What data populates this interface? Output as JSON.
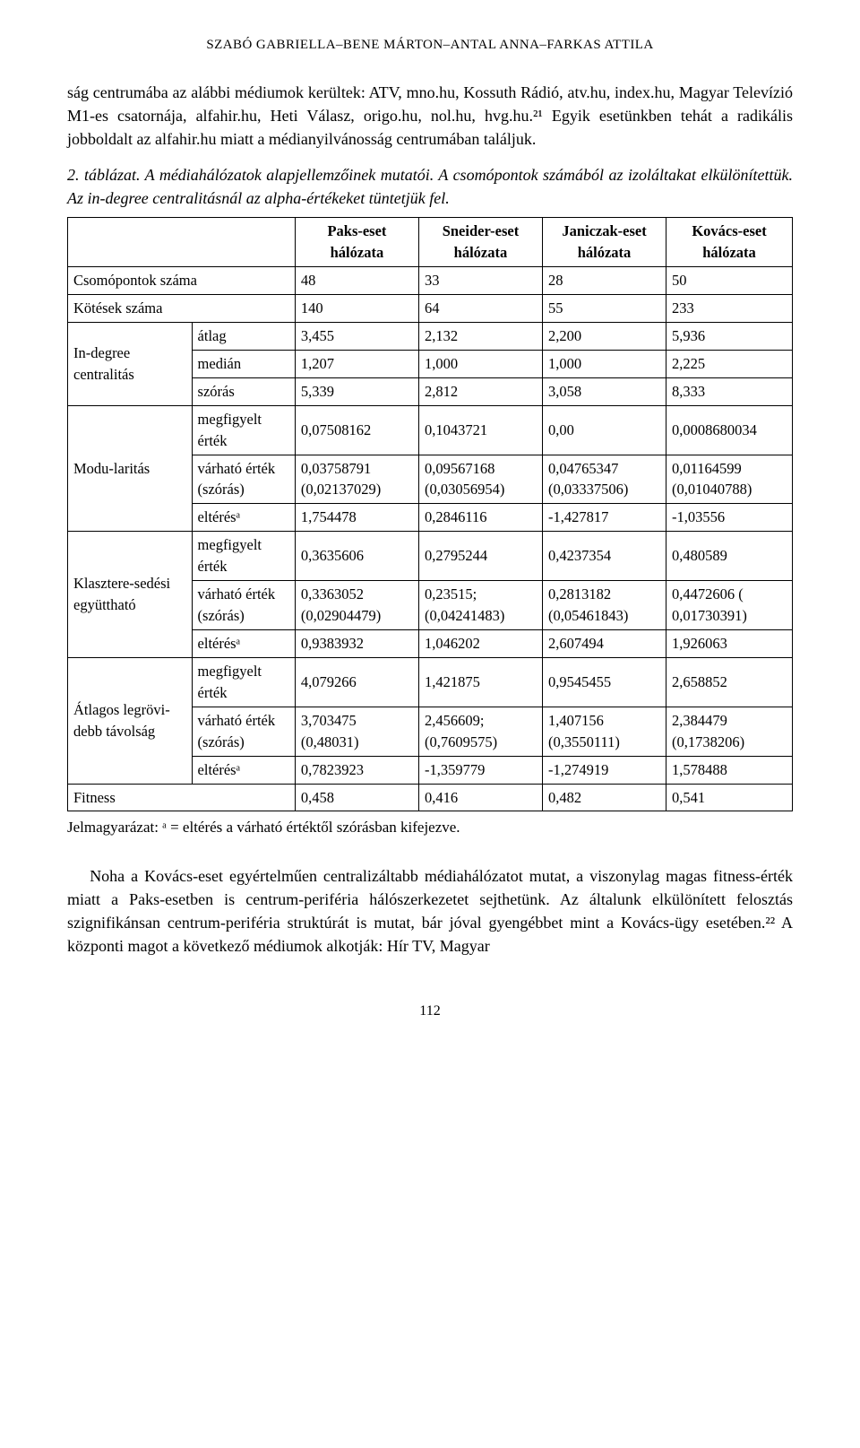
{
  "header": {
    "authors": "SZABÓ GABRIELLA–BENE MÁRTON–ANTAL ANNA–FARKAS ATTILA"
  },
  "para1": "ság centrumába az alábbi médiumok kerültek: ATV, mno.hu, Kossuth Rádió, atv.hu, index.hu, Magyar Televízió M1-es csatornája, alfahir.hu, Heti Válasz, origo.hu, nol.hu, hvg.hu.²¹ Egyik esetünkben tehát a radikális jobboldalt az alfahir.hu miatt a médianyilvánosság centrumában találjuk.",
  "caption": "2. táblázat. A médiahálózatok alapjellemzőinek mutatói. A csomópontok számából az izoláltakat elkülönítettük. Az in-degree centralitásnál az alpha-értékeket tüntetjük fel.",
  "table": {
    "columns": [
      "",
      "",
      "Paks-eset hálózata",
      "Sneider-eset hálózata",
      "Janiczak-eset hálózata",
      "Kovács-eset hálózata"
    ],
    "groups": [
      {
        "label": "Csomópontok száma",
        "rows": [
          [
            "",
            "48",
            "33",
            "28",
            "50"
          ]
        ],
        "span": false
      },
      {
        "label": "Kötések száma",
        "rows": [
          [
            "",
            "140",
            "64",
            "55",
            "233"
          ]
        ],
        "span": false
      },
      {
        "label": "In-degree centralitás",
        "rows": [
          [
            "átlag",
            "3,455",
            "2,132",
            "2,200",
            "5,936"
          ],
          [
            "medián",
            "1,207",
            "1,000",
            "1,000",
            "2,225"
          ],
          [
            "szórás",
            "5,339",
            "2,812",
            "3,058",
            "8,333"
          ]
        ],
        "span": true
      },
      {
        "label": "Modu-laritás",
        "rows": [
          [
            "megfigyelt érték",
            "0,07508162",
            "0,1043721",
            "0,00",
            "0,0008680034"
          ],
          [
            "várható érték (szórás)",
            "0,03758791 (0,02137029)",
            "0,09567168 (0,03056954)",
            "0,04765347 (0,03337506)",
            "0,01164599 (0,01040788)"
          ],
          [
            "eltérésᵃ",
            "1,754478",
            "0,2846116",
            "-1,427817",
            "-1,03556"
          ]
        ],
        "span": true
      },
      {
        "label": "Klasztere-sedési együttható",
        "rows": [
          [
            "megfigyelt érték",
            "0,3635606",
            "0,2795244",
            "0,4237354",
            "0,480589"
          ],
          [
            "várható érték (szórás)",
            "0,3363052 (0,02904479)",
            "0,23515; (0,04241483)",
            "0,2813182 (0,05461843)",
            "0,4472606 ( 0,01730391)"
          ],
          [
            "eltérésᵃ",
            "0,9383932",
            "1,046202",
            "2,607494",
            "1,926063"
          ]
        ],
        "span": true
      },
      {
        "label": "Átlagos legrövi-debb távolság",
        "rows": [
          [
            "megfigyelt érték",
            "4,079266",
            "1,421875",
            "0,9545455",
            "2,658852"
          ],
          [
            "várható érték (szórás)",
            "3,703475 (0,48031)",
            "2,456609; (0,7609575)",
            "1,407156 (0,3550111)",
            "2,384479 (0,1738206)"
          ],
          [
            "eltérésᵃ",
            "0,7823923",
            "-1,359779",
            "-1,274919",
            "1,578488"
          ]
        ],
        "span": true
      },
      {
        "label": "Fitness",
        "rows": [
          [
            "",
            "0,458",
            "0,416",
            "0,482",
            "0,541"
          ]
        ],
        "span": false
      }
    ]
  },
  "tablenote": "Jelmagyarázat: ᵃ = eltérés a várható értéktől szórásban kifejezve.",
  "para2": "Noha a Kovács-eset egyértelműen centralizáltabb médiahálózatot mutat, a viszonylag magas fitness-érték miatt a Paks-esetben is centrum-periféria hálószerkezetet sejthetünk. Az általunk elkülönített felosztás szignifikánsan centrum-periféria struktúrát is mutat, bár jóval gyengébbet mint a Kovács-ügy esetében.²² A központi magot a következő médiumok alkotják: Hír TV, Magyar",
  "page_number": "112"
}
